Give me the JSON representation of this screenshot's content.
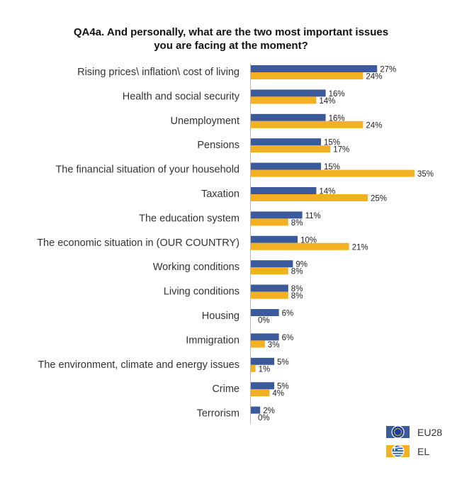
{
  "title_line1": "QA4a. And personally, what are the two most important issues",
  "title_line2": "you are facing at the moment?",
  "colors": {
    "eu28": "#3a5a9c",
    "el": "#f2b120",
    "axis": "#bbbbbb"
  },
  "legend": [
    {
      "label": "EU28",
      "icon": "eu-flag-icon",
      "color": "#3a5a9c"
    },
    {
      "label": "EL",
      "icon": "greek-flag-icon",
      "color": "#f2b120"
    }
  ],
  "chart_data": {
    "type": "bar",
    "orientation": "horizontal",
    "title": "QA4a. And personally, what are the two most important issues you are facing at the moment?",
    "unit": "%",
    "categories": [
      "Rising prices\\ inflation\\ cost of living",
      "Health and social security",
      "Unemployment",
      "Pensions",
      "The financial situation of your household",
      "Taxation",
      "The education system",
      "The economic situation in (OUR COUNTRY)",
      "Working conditions",
      "Living conditions",
      "Housing",
      "Immigration",
      "The environment, climate and energy issues",
      "Crime",
      "Terrorism"
    ],
    "series": [
      {
        "name": "EU28",
        "values": [
          27,
          16,
          16,
          15,
          15,
          14,
          11,
          10,
          9,
          8,
          6,
          6,
          5,
          5,
          2
        ]
      },
      {
        "name": "EL",
        "values": [
          24,
          14,
          24,
          17,
          35,
          25,
          8,
          21,
          8,
          8,
          0,
          3,
          1,
          4,
          0
        ]
      }
    ],
    "legend_position": "bottom-right",
    "grid": false
  }
}
